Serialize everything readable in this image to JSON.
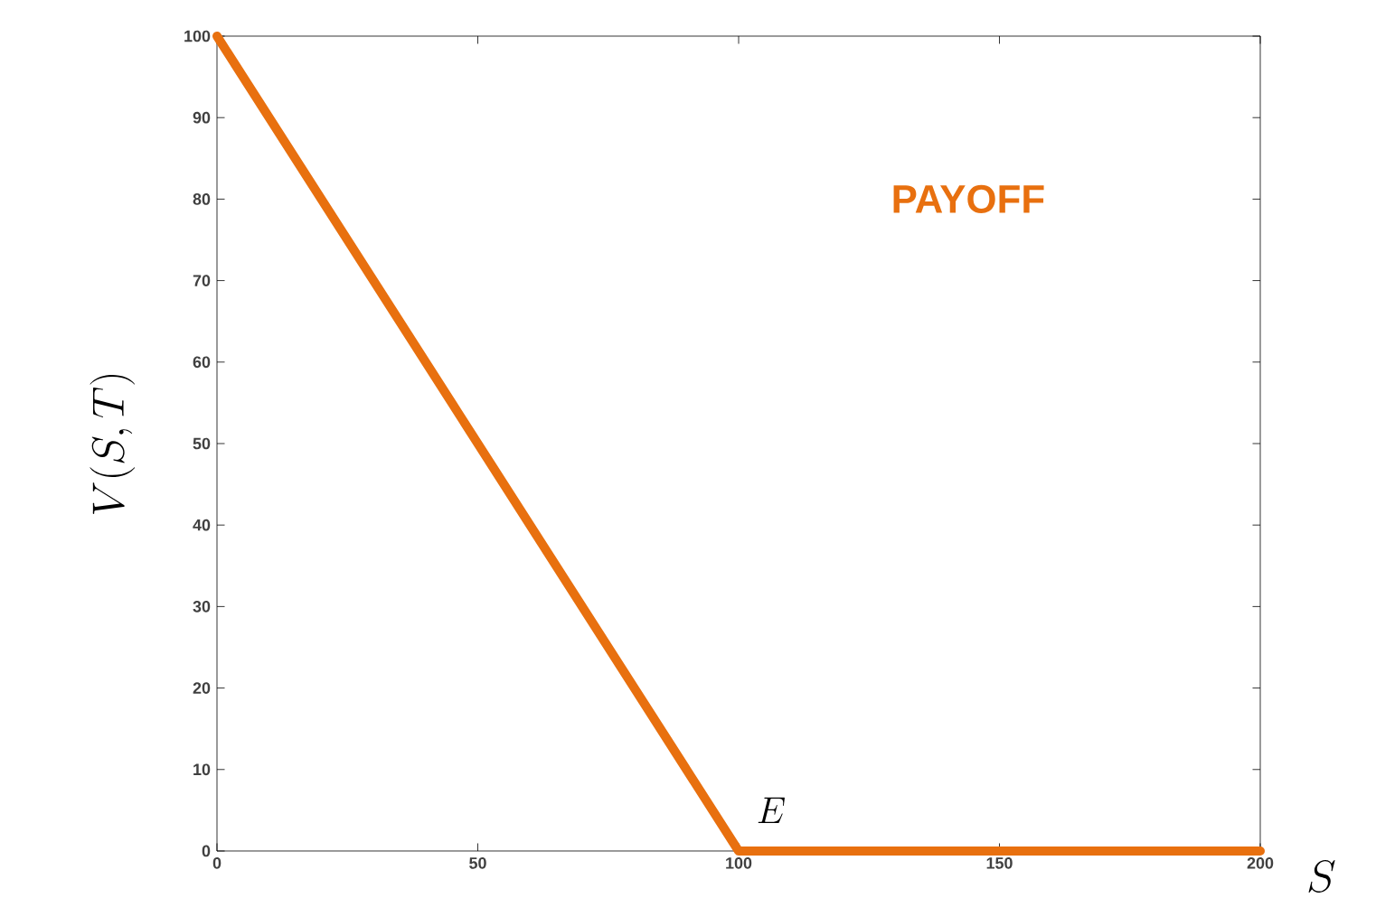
{
  "chart_data": {
    "type": "line",
    "xlabel": "S",
    "ylabel": "V(S,T)",
    "x": [
      0,
      100,
      200
    ],
    "series": [
      {
        "color": "#e8700f",
        "values": [
          100,
          0,
          0
        ]
      }
    ],
    "xlim": [
      0,
      200
    ],
    "ylim": [
      0,
      100
    ],
    "xticks": [
      0,
      50,
      100,
      150,
      200
    ],
    "yticks": [
      0,
      10,
      20,
      30,
      40,
      50,
      60,
      70,
      80,
      90,
      100
    ],
    "annotations": [
      "PAYOFF",
      {
        "text": "E",
        "x": 100,
        "y": 0
      }
    ],
    "grid": false,
    "marker": "none",
    "line_style": "solid"
  }
}
